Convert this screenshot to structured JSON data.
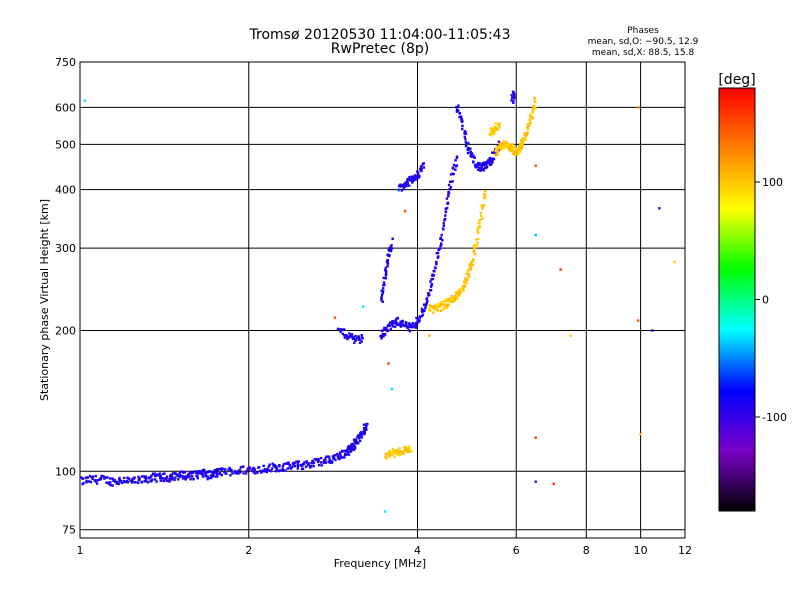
{
  "chart_data": {
    "type": "scatter",
    "title": "Tromsø 20120530 11:04:00-11:05:43",
    "subtitle": "RwPretec (8p)",
    "xlabel": "Frequency [MHz]",
    "ylabel": "Stationary phase Virtual Height [km]",
    "x_scale": "log",
    "y_scale": "log",
    "xlim": [
      1,
      12
    ],
    "ylim": [
      72,
      750
    ],
    "x_ticks": [
      1,
      2,
      4,
      6,
      8,
      10,
      12
    ],
    "y_ticks": [
      75,
      100,
      200,
      300,
      400,
      500,
      600,
      750
    ],
    "grid": true,
    "phases_box": {
      "title": "Phases",
      "line1": "mean, sd,O: −90.5, 12.9",
      "line2": "mean, sd,X:  88.5, 15.8"
    },
    "colorbar": {
      "label": "[deg]",
      "range": [
        -180,
        180
      ],
      "ticks": [
        100,
        0,
        -100
      ],
      "colormap": [
        "#000000",
        "#7a00c8",
        "#0000ff",
        "#00ffff",
        "#00ff00",
        "#ffff00",
        "#ff8000",
        "#ff0000"
      ]
    },
    "series": [
      {
        "phase": -90,
        "segments": [
          {
            "x": [
              1.0,
              1.05,
              1.1,
              1.15,
              1.2,
              1.25,
              1.3,
              1.35,
              1.4,
              1.45,
              1.5,
              1.55,
              1.6,
              1.65,
              1.7,
              1.75,
              1.8
            ],
            "y": [
              95,
              96,
              96,
              95,
              96,
              95,
              96,
              97,
              97,
              97,
              98,
              98,
              98,
              99,
              98,
              99,
              100
            ]
          },
          {
            "x": [
              1.8,
              1.9,
              2.0,
              2.1,
              2.2,
              2.3,
              2.4,
              2.5,
              2.6,
              2.7,
              2.8,
              2.9,
              3.0,
              3.05,
              3.1
            ],
            "y": [
              100,
              100,
              101,
              101,
              102,
              102,
              103,
              103,
              104,
              105,
              106,
              108,
              110,
              112,
              115
            ]
          },
          {
            "x": [
              3.1,
              3.15,
              3.2,
              3.25
            ],
            "y": [
              115,
              118,
              122,
              125
            ]
          },
          {
            "x": [
              2.9,
              3.0,
              3.1,
              3.2
            ],
            "y": [
              200,
              195,
              192,
              192
            ]
          },
          {
            "x": [
              3.45,
              3.5,
              3.6,
              3.7,
              3.8,
              3.9,
              4.0,
              4.1,
              4.2,
              4.3,
              4.4,
              4.5,
              4.6,
              4.7
            ],
            "y": [
              195,
              200,
              205,
              210,
              205,
              202,
              210,
              220,
              240,
              270,
              310,
              360,
              420,
              470
            ]
          },
          {
            "x": [
              3.45,
              3.5,
              3.55,
              3.6
            ],
            "y": [
              230,
              260,
              290,
              310
            ]
          },
          {
            "x": [
              4.7,
              4.8,
              4.9,
              5.0,
              5.1,
              5.2,
              5.3,
              5.4,
              5.5,
              5.6
            ],
            "y": [
              600,
              560,
              500,
              470,
              450,
              445,
              450,
              460,
              480,
              500
            ]
          },
          {
            "x": [
              3.7,
              3.8,
              3.9,
              4.0,
              4.1
            ],
            "y": [
              400,
              410,
              420,
              430,
              450
            ]
          },
          {
            "x": [
              5.9,
              5.95
            ],
            "y": [
              620,
              640
            ]
          }
        ]
      },
      {
        "phase": 100,
        "segments": [
          {
            "x": [
              3.5,
              3.6,
              3.7,
              3.8,
              3.9
            ],
            "y": [
              108,
              109,
              110,
              111,
              112
            ]
          },
          {
            "x": [
              4.2,
              4.3,
              4.4,
              4.5,
              4.6,
              4.7,
              4.8,
              4.9,
              5.0,
              5.1,
              5.2,
              5.3
            ],
            "y": [
              222,
              223,
              225,
              228,
              232,
              238,
              245,
              260,
              280,
              310,
              350,
              400
            ]
          },
          {
            "x": [
              5.5,
              5.6,
              5.7,
              5.8,
              5.9,
              6.0,
              6.1,
              6.2,
              6.3,
              6.4,
              6.5
            ],
            "y": [
              480,
              490,
              500,
              495,
              490,
              480,
              490,
              510,
              540,
              580,
              620
            ]
          },
          {
            "x": [
              5.4,
              5.5,
              5.6
            ],
            "y": [
              530,
              540,
              550
            ]
          }
        ]
      }
    ],
    "scatter_points": [
      {
        "x": 1.02,
        "y": 620,
        "phase": -30
      },
      {
        "x": 2.85,
        "y": 213,
        "phase": 150
      },
      {
        "x": 3.2,
        "y": 225,
        "phase": -30
      },
      {
        "x": 3.5,
        "y": 82,
        "phase": -30
      },
      {
        "x": 3.55,
        "y": 170,
        "phase": 160
      },
      {
        "x": 3.6,
        "y": 150,
        "phase": -30
      },
      {
        "x": 3.7,
        "y": 400,
        "phase": -60
      },
      {
        "x": 3.8,
        "y": 360,
        "phase": 150
      },
      {
        "x": 4.2,
        "y": 195,
        "phase": 110
      },
      {
        "x": 6.5,
        "y": 118,
        "phase": 160
      },
      {
        "x": 6.5,
        "y": 95,
        "phase": -110
      },
      {
        "x": 7.0,
        "y": 94,
        "phase": 160
      },
      {
        "x": 6.5,
        "y": 320,
        "phase": -40
      },
      {
        "x": 6.5,
        "y": 450,
        "phase": 150
      },
      {
        "x": 7.2,
        "y": 270,
        "phase": 160
      },
      {
        "x": 7.5,
        "y": 195,
        "phase": 100
      },
      {
        "x": 9.9,
        "y": 600,
        "phase": 120
      },
      {
        "x": 9.9,
        "y": 210,
        "phase": 150
      },
      {
        "x": 10.0,
        "y": 120,
        "phase": 110
      },
      {
        "x": 10.5,
        "y": 200,
        "phase": -80
      },
      {
        "x": 10.8,
        "y": 365,
        "phase": -100
      },
      {
        "x": 11.5,
        "y": 280,
        "phase": 100
      }
    ]
  }
}
